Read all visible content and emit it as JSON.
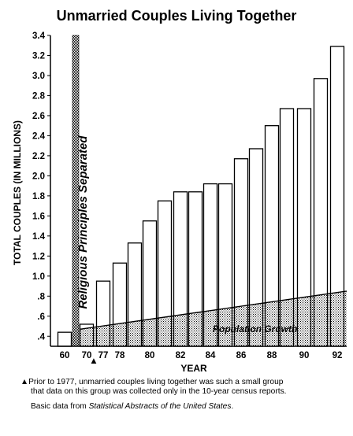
{
  "chart_data": {
    "type": "bar",
    "title": "Unmarried Couples Living Together",
    "xlabel": "YEAR",
    "ylabel": "TOTAL COUPLES (IN MILLIONS)",
    "ylim": [
      0.3,
      3.4
    ],
    "yticks": [
      "3.4",
      "3.2",
      "3.0",
      "2.8",
      "2.6",
      "2.4",
      "2.2",
      "2.0",
      "1.8",
      "1.6",
      "1.4",
      "1.2",
      "1.0",
      ".8",
      ".6",
      ".4"
    ],
    "ytick_values": [
      3.4,
      3.2,
      3.0,
      2.8,
      2.6,
      2.4,
      2.2,
      2.0,
      1.8,
      1.6,
      1.4,
      1.2,
      1.0,
      0.8,
      0.6,
      0.4
    ],
    "xticks": [
      "60",
      "70",
      "77",
      "78",
      "80",
      "82",
      "84",
      "86",
      "88",
      "90",
      "92"
    ],
    "bars": [
      {
        "x": 1960,
        "value": 0.44
      },
      {
        "x": 1970,
        "value": 0.52
      },
      {
        "x": 1977,
        "value": 0.95
      },
      {
        "x": 1978,
        "value": 1.13
      },
      {
        "x": 1979,
        "value": 1.33
      },
      {
        "x": 1980,
        "value": 1.55
      },
      {
        "x": 1981,
        "value": 1.75
      },
      {
        "x": 1982,
        "value": 1.84
      },
      {
        "x": 1983,
        "value": 1.84
      },
      {
        "x": 1984,
        "value": 1.92
      },
      {
        "x": 1985,
        "value": 1.92
      },
      {
        "x": 1986,
        "value": 2.17
      },
      {
        "x": 1987,
        "value": 2.27
      },
      {
        "x": 1988,
        "value": 2.5
      },
      {
        "x": 1989,
        "value": 2.67
      },
      {
        "x": 1990,
        "value": 2.67
      },
      {
        "x": 1991,
        "value": 2.97
      },
      {
        "x": 1992,
        "value": 3.29
      }
    ],
    "population_growth": {
      "label": "Population Growth",
      "start": {
        "x": 1970,
        "value": 0.47
      },
      "end": {
        "x": 1993,
        "value": 0.85
      }
    },
    "annotation_bar": {
      "label": "Religious Principles Separated",
      "x": 1971
    },
    "marker_symbol": "▲",
    "footnote_lines": [
      "▲Prior to 1977, unmarried couples living together was such a small group",
      "that data on this group was collected only in the 10-year census reports."
    ],
    "source_prefix": "Basic data from ",
    "source_title": "Statistical Abstracts of the United States",
    "source_suffix": "."
  }
}
